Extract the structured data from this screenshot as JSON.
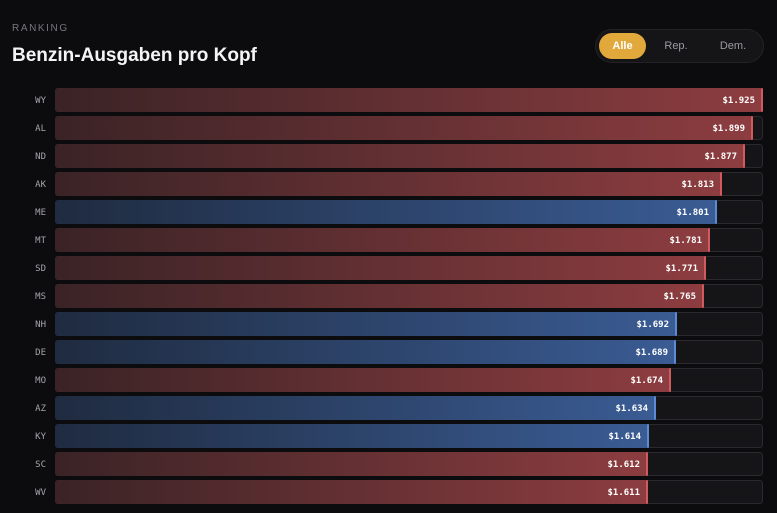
{
  "header": {
    "eyebrow": "RANKING",
    "title": "Benzin-Ausgaben pro Kopf"
  },
  "filter": {
    "options": [
      "Alle",
      "Rep.",
      "Dem."
    ],
    "selected": "Alle"
  },
  "colors": {
    "rep_start": "#3a2326",
    "rep_end": "#8d3d40",
    "rep_edge": "#d05a5e",
    "dem_start": "#1f2b40",
    "dem_end": "#3a5c94",
    "dem_edge": "#5b8ad6",
    "accent": "#e1a83c"
  },
  "chart_data": {
    "type": "bar",
    "orientation": "horizontal",
    "title": "Benzin-Ausgaben pro Kopf",
    "categories": [
      "WY",
      "AL",
      "ND",
      "AK",
      "ME",
      "MT",
      "SD",
      "MS",
      "NH",
      "DE",
      "MO",
      "AZ",
      "KY",
      "SC",
      "WV"
    ],
    "values": [
      1925,
      1899,
      1877,
      1813,
      1801,
      1781,
      1771,
      1765,
      1692,
      1689,
      1674,
      1634,
      1614,
      1612,
      1611
    ],
    "value_labels": [
      "$1.925",
      "$1.899",
      "$1.877",
      "$1.813",
      "$1.801",
      "$1.781",
      "$1.771",
      "$1.765",
      "$1.692",
      "$1.689",
      "$1.674",
      "$1.634",
      "$1.614",
      "$1.612",
      "$1.611"
    ],
    "party": [
      "Rep.",
      "Rep.",
      "Rep.",
      "Rep.",
      "Dem.",
      "Rep.",
      "Rep.",
      "Rep.",
      "Dem.",
      "Dem.",
      "Rep.",
      "Dem.",
      "Dem.",
      "Rep.",
      "Rep."
    ],
    "xlim": [
      0,
      1925
    ]
  }
}
